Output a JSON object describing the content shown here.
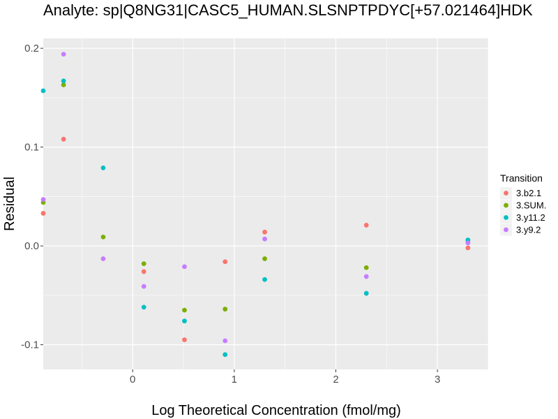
{
  "chart_data": {
    "type": "scatter",
    "title": "Analyte: sp|Q8NG31|CASC5_HUMAN.SLSNPTPDYC[+57.021464]HDK",
    "xlabel": "Log Theoretical Concentration (fmol/mg)",
    "ylabel": "Residual",
    "xlim": [
      -0.88,
      3.5
    ],
    "ylim": [
      -0.125,
      0.21
    ],
    "x_ticks": [
      0,
      1,
      2,
      3
    ],
    "x_tick_labels": [
      "0",
      "1",
      "2",
      "3"
    ],
    "y_ticks": [
      -0.1,
      0.0,
      0.1,
      0.2
    ],
    "y_tick_labels": [
      "-0.1",
      "0.0",
      "0.1",
      "0.2"
    ],
    "grid": true,
    "legend": {
      "title": "Transition",
      "position": "right"
    },
    "series": [
      {
        "name": "3.b2.1",
        "color": "#F8766D",
        "points": [
          {
            "x": -0.88,
            "y": 0.033
          },
          {
            "x": -0.68,
            "y": 0.108
          },
          {
            "x": 0.11,
            "y": -0.026
          },
          {
            "x": 0.51,
            "y": -0.095
          },
          {
            "x": 0.91,
            "y": -0.016
          },
          {
            "x": 1.3,
            "y": 0.014
          },
          {
            "x": 2.3,
            "y": 0.021
          },
          {
            "x": 3.3,
            "y": -0.002
          }
        ]
      },
      {
        "name": "3.SUM.",
        "color": "#7CAE00",
        "points": [
          {
            "x": -0.88,
            "y": 0.044
          },
          {
            "x": -0.68,
            "y": 0.163
          },
          {
            "x": -0.29,
            "y": 0.009
          },
          {
            "x": 0.11,
            "y": -0.018
          },
          {
            "x": 0.51,
            "y": -0.065
          },
          {
            "x": 0.91,
            "y": -0.064
          },
          {
            "x": 1.3,
            "y": -0.013
          },
          {
            "x": 2.3,
            "y": -0.022
          },
          {
            "x": 3.3,
            "y": 0.004
          }
        ]
      },
      {
        "name": "3.y11.2",
        "color": "#00BFC4",
        "points": [
          {
            "x": -0.88,
            "y": 0.157
          },
          {
            "x": -0.68,
            "y": 0.167
          },
          {
            "x": -0.29,
            "y": 0.079
          },
          {
            "x": 0.11,
            "y": -0.062
          },
          {
            "x": 0.51,
            "y": -0.076
          },
          {
            "x": 0.91,
            "y": -0.11
          },
          {
            "x": 1.3,
            "y": -0.034
          },
          {
            "x": 2.3,
            "y": -0.048
          },
          {
            "x": 3.3,
            "y": 0.006
          }
        ]
      },
      {
        "name": "3.y9.2",
        "color": "#C77CFF",
        "points": [
          {
            "x": -0.88,
            "y": 0.047
          },
          {
            "x": -0.68,
            "y": 0.194
          },
          {
            "x": -0.29,
            "y": -0.013
          },
          {
            "x": 0.11,
            "y": -0.041
          },
          {
            "x": 0.51,
            "y": -0.021
          },
          {
            "x": 0.91,
            "y": -0.096
          },
          {
            "x": 1.3,
            "y": 0.007
          },
          {
            "x": 2.3,
            "y": -0.031
          },
          {
            "x": 3.3,
            "y": 0.003
          }
        ]
      }
    ]
  }
}
